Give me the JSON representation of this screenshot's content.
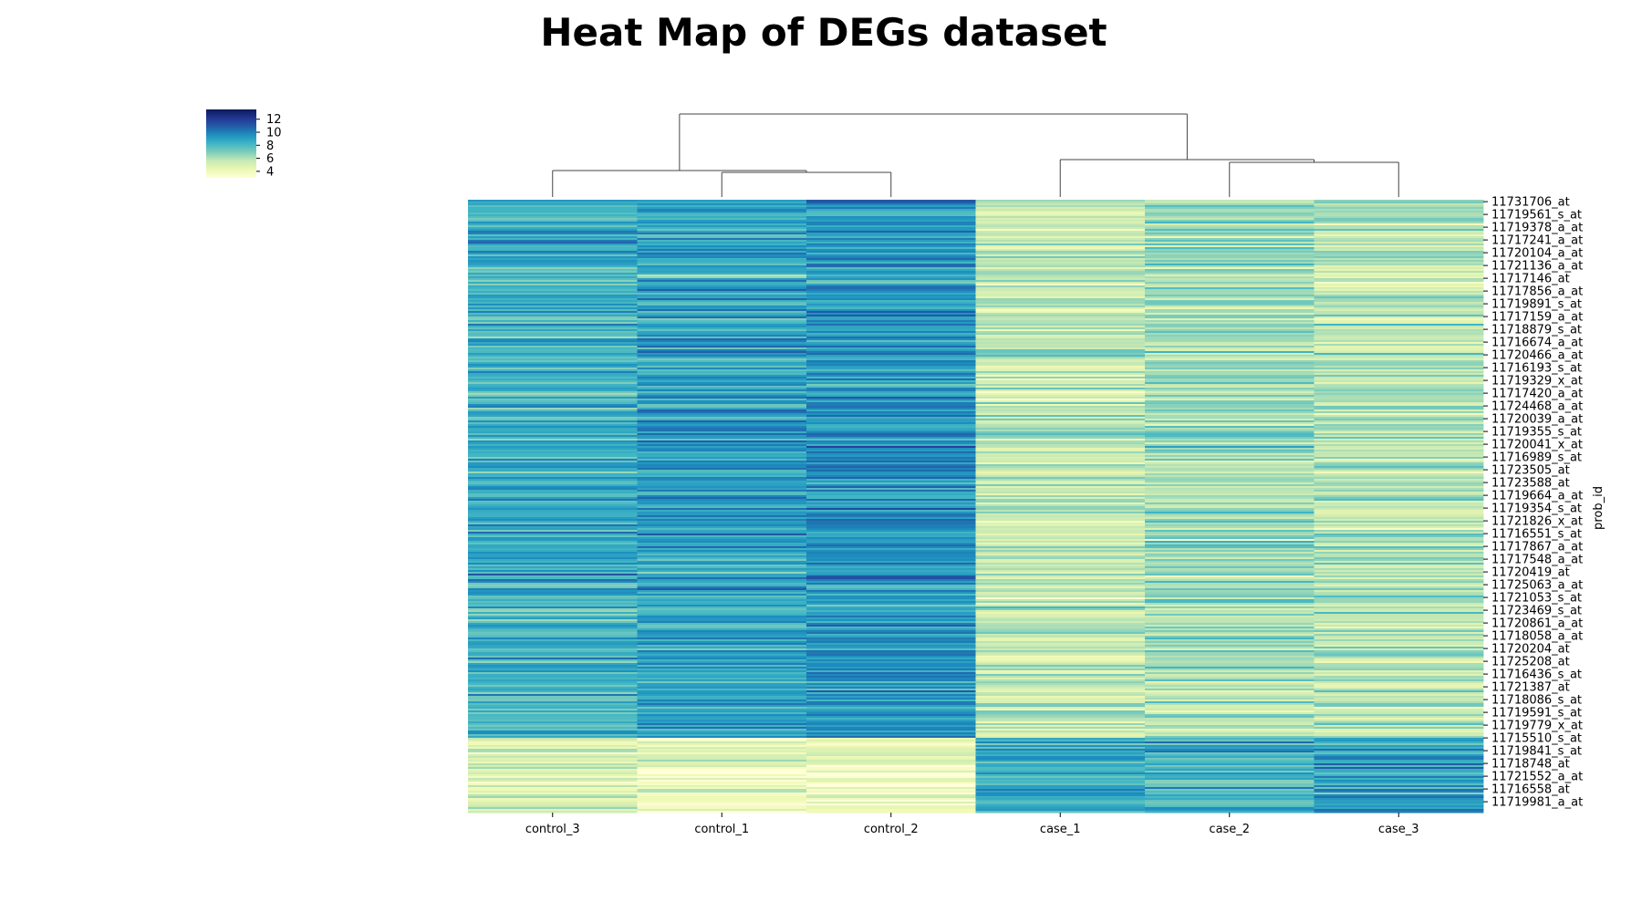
{
  "chart_data": {
    "type": "heatmap",
    "title": "Heat Map of DEGs dataset",
    "ylabel": "prob_id",
    "xlabel": "",
    "columns": [
      "control_3",
      "control_1",
      "control_2",
      "case_1",
      "case_2",
      "case_3"
    ],
    "row_tick_labels": [
      "11731706_at",
      "11719561_s_at",
      "11719378_a_at",
      "11717241_a_at",
      "11720104_a_at",
      "11721136_a_at",
      "11717146_at",
      "11717856_a_at",
      "11719891_s_at",
      "11717159_a_at",
      "11718879_s_at",
      "11716674_a_at",
      "11720466_a_at",
      "11716193_s_at",
      "11719329_x_at",
      "11717420_a_at",
      "11724468_a_at",
      "11720039_a_at",
      "11719355_s_at",
      "11720041_x_at",
      "11716989_s_at",
      "11723505_at",
      "11723588_at",
      "11719664_a_at",
      "11719354_s_at",
      "11721826_x_at",
      "11716551_s_at",
      "11717867_a_at",
      "11717548_a_at",
      "11720419_at",
      "11725063_a_at",
      "11721053_s_at",
      "11723469_s_at",
      "11720861_a_at",
      "11718058_a_at",
      "11720204_at",
      "11725208_at",
      "11716436_s_at",
      "11721387_at",
      "11718086_s_at",
      "11719591_s_at",
      "11719779_x_at",
      "11715510_s_at",
      "11719841_s_at",
      "11718748_at",
      "11721552_a_at",
      "11716558_at",
      "11719981_a_at"
    ],
    "column_means": [
      8.4,
      8.9,
      9.3,
      5.6,
      6.3,
      5.9
    ],
    "lower_block_column_means": [
      4.6,
      4.4,
      4.3,
      8.7,
      8.4,
      8.9
    ],
    "lower_block_start_row": "11715510_s_at",
    "colorbar": {
      "colormap": "YlGnBu",
      "ticks": [
        4,
        6,
        8,
        10,
        12
      ],
      "range": [
        3,
        13.5
      ]
    },
    "column_dendrogram": "((control_3,(control_1,control_2)),(case_1,(case_2,case_3)))",
    "grid": false,
    "legend": "colorbar top-left"
  }
}
